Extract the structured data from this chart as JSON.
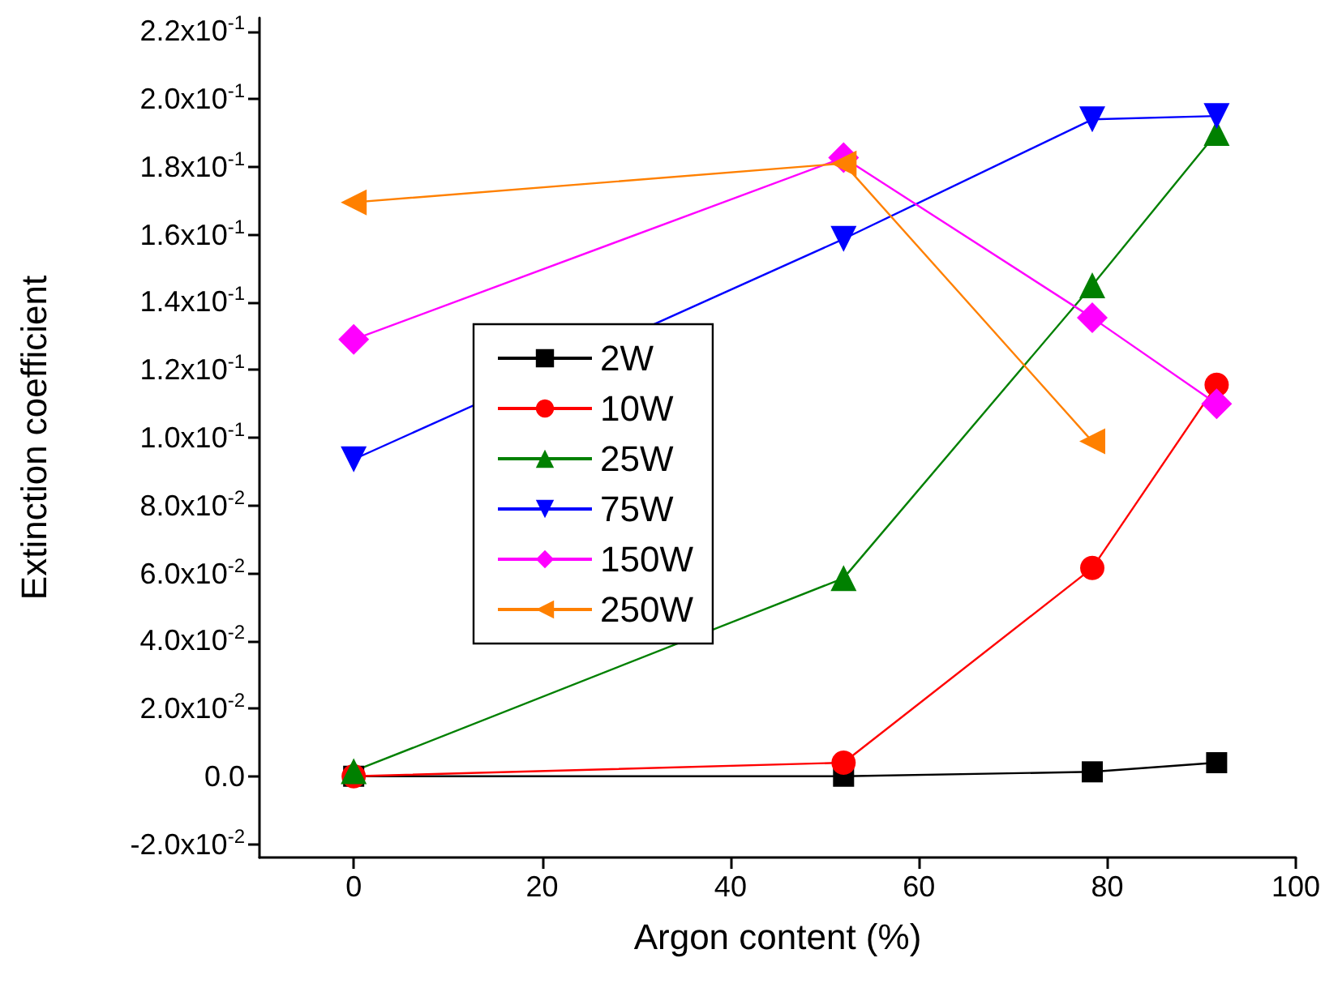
{
  "chart_data": {
    "type": "line",
    "xlabel": "Argon content (%)",
    "ylabel": "Extinction coefficient",
    "xlim": [
      -10,
      100
    ],
    "xticks": [
      0,
      20,
      40,
      60,
      80,
      100
    ],
    "ylim": [
      -0.024,
      0.224
    ],
    "yticks": [
      {
        "value": -0.02,
        "label": "-2.0x10$^{-2}$"
      },
      {
        "value": 0,
        "label": "0.0"
      },
      {
        "value": 0.02,
        "label": "2.0x10$^{-2}$"
      },
      {
        "value": 0.04,
        "label": "4.0x10$^{-2}$"
      },
      {
        "value": 0.06,
        "label": "6.0x10$^{-2}$"
      },
      {
        "value": 0.08,
        "label": "8.0x10$^{-2}$"
      },
      {
        "value": 0.1,
        "label": "1.0x10$^{-1}$"
      },
      {
        "value": 0.12,
        "label": "1.2x10$^{-1}$"
      },
      {
        "value": 0.14,
        "label": "1.4x10$^{-1}$"
      },
      {
        "value": 0.16,
        "label": "1.6x10$^{-1}$"
      },
      {
        "value": 0.18,
        "label": "1.8x10$^{-1}$"
      },
      {
        "value": 0.2,
        "label": "2.0x10$^{-1}$"
      },
      {
        "value": 0.22,
        "label": "2.2x10$^{-1}$"
      }
    ],
    "grid": false,
    "legend": "left",
    "line_style": "solid",
    "series": [
      {
        "name": "2W",
        "color": "#000000",
        "marker": "square",
        "x": [
          0,
          52,
          78.4,
          91.6
        ],
        "values": [
          0,
          0,
          0.0013,
          0.004
        ]
      },
      {
        "name": "10W",
        "color": "#ff0000",
        "marker": "circle",
        "x": [
          0,
          52,
          78.4,
          91.6
        ],
        "values": [
          0,
          0.004,
          0.0615,
          0.1156
        ]
      },
      {
        "name": "25W",
        "color": "#008000",
        "marker": "triangle",
        "x": [
          0,
          52,
          78.4,
          91.6
        ],
        "values": [
          0.0015,
          0.0585,
          0.145,
          0.19
        ]
      },
      {
        "name": "75W",
        "color": "#0000ff",
        "marker": "triangle-down",
        "x": [
          0,
          52,
          78.4,
          91.6
        ],
        "values": [
          0.0936,
          0.1587,
          0.194,
          0.195
        ]
      },
      {
        "name": "150W",
        "color": "#ff00ff",
        "marker": "diamond",
        "x": [
          0,
          52,
          78.4,
          91.6
        ],
        "values": [
          0.129,
          0.1827,
          0.1354,
          0.11
        ]
      },
      {
        "name": "250W",
        "color": "#ff8000",
        "marker": "triangle-left",
        "x": [
          0,
          52,
          78.4
        ],
        "values": [
          0.1695,
          0.181,
          0.0989
        ]
      }
    ]
  }
}
